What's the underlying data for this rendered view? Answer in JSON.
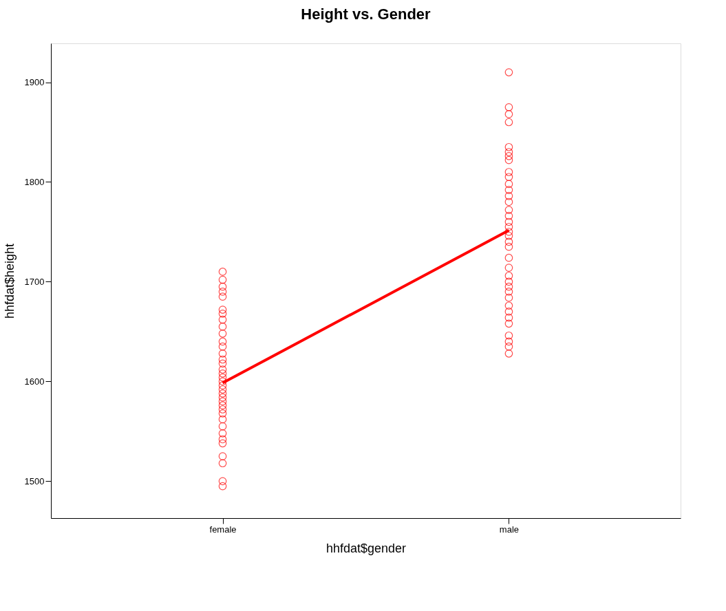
{
  "chart_data": {
    "type": "scatter",
    "title": "Height vs. Gender",
    "xlabel": "hhfdat$gender",
    "ylabel": "hhfdat$height",
    "categories": [
      "female",
      "male"
    ],
    "ylim": [
      1463,
      1939
    ],
    "yticks": [
      1500,
      1600,
      1700,
      1800,
      1900
    ],
    "grid": false,
    "marker": "circle",
    "series": [
      {
        "color": "#ff0000",
        "x": [
          "female",
          "female",
          "female",
          "female",
          "female",
          "female",
          "female",
          "female",
          "female",
          "female",
          "female",
          "female",
          "female",
          "female",
          "female",
          "female",
          "female",
          "female",
          "female",
          "female",
          "female",
          "female",
          "female",
          "female",
          "female",
          "female",
          "female",
          "female",
          "female",
          "female",
          "female",
          "female",
          "female",
          "female",
          "female",
          "female"
        ],
        "values": [
          1710,
          1702,
          1695,
          1690,
          1685,
          1672,
          1668,
          1662,
          1655,
          1648,
          1640,
          1635,
          1628,
          1622,
          1618,
          1612,
          1608,
          1604,
          1600,
          1596,
          1592,
          1588,
          1584,
          1580,
          1576,
          1572,
          1568,
          1562,
          1555,
          1548,
          1542,
          1538,
          1525,
          1518,
          1500,
          1495
        ]
      },
      {
        "color": "#ff0000",
        "x": [
          "male",
          "male",
          "male",
          "male",
          "male",
          "male",
          "male",
          "male",
          "male",
          "male",
          "male",
          "male",
          "male",
          "male",
          "male",
          "male",
          "male",
          "male",
          "male",
          "male",
          "male",
          "male",
          "male",
          "male",
          "male",
          "male",
          "male",
          "male",
          "male",
          "male",
          "male",
          "male",
          "male",
          "male",
          "male",
          "male",
          "male"
        ],
        "values": [
          1910,
          1875,
          1868,
          1860,
          1835,
          1830,
          1826,
          1822,
          1810,
          1805,
          1798,
          1792,
          1786,
          1780,
          1772,
          1766,
          1760,
          1755,
          1750,
          1746,
          1740,
          1735,
          1724,
          1714,
          1706,
          1700,
          1695,
          1690,
          1684,
          1676,
          1670,
          1664,
          1658,
          1646,
          1640,
          1635,
          1628
        ]
      },
      {
        "type": "line",
        "marker": "none",
        "color": "#ff0000",
        "x": [
          "female",
          "male"
        ],
        "values": [
          1598.5,
          1751.6
        ]
      }
    ]
  }
}
